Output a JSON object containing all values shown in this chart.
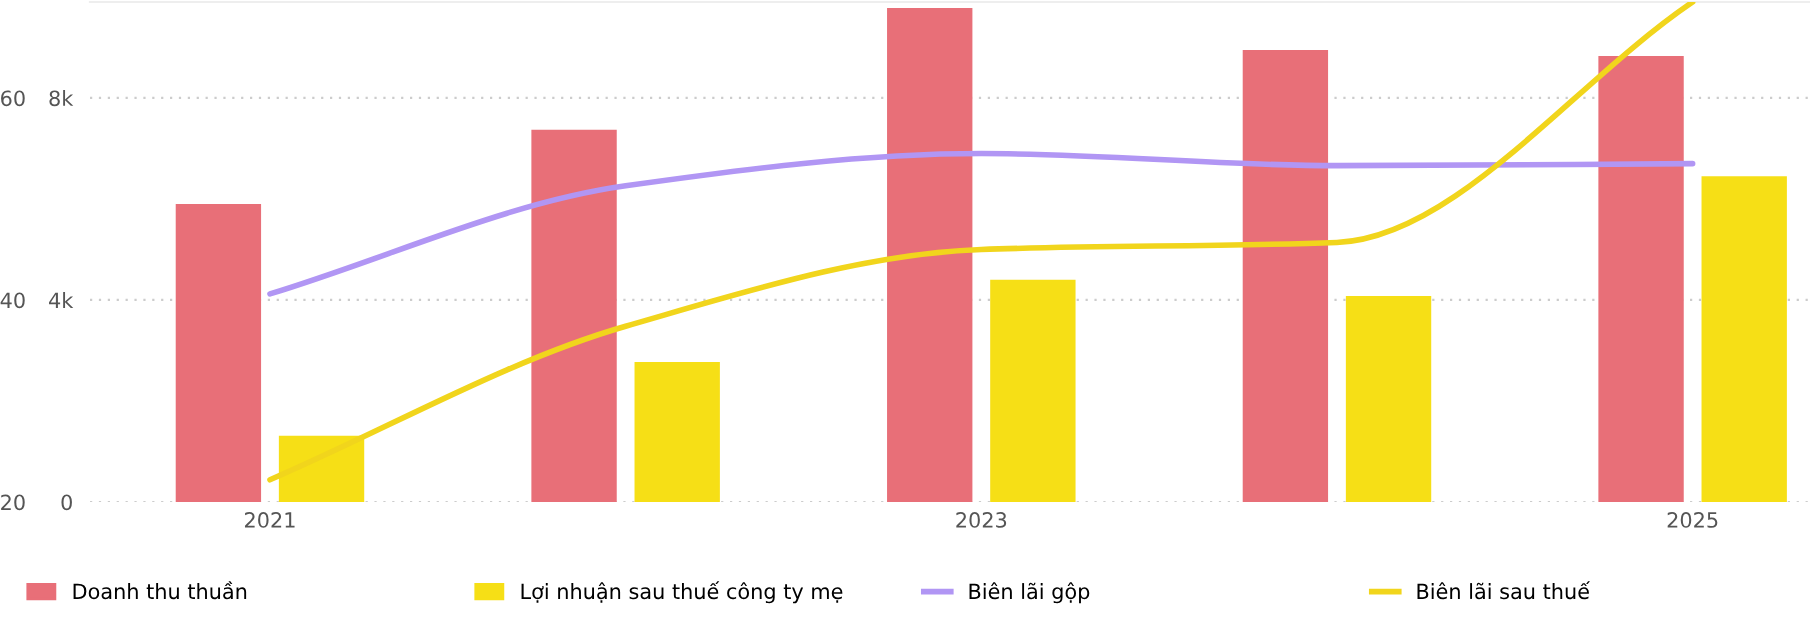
{
  "chart_data": {
    "type": "bar",
    "categories": [
      "2021",
      null,
      "2023",
      null,
      "2025"
    ],
    "series": [
      {
        "name": "Doanh thu thuần",
        "color": "#e86f78",
        "values": [
          5900,
          7370,
          9780,
          8950,
          8830
        ]
      },
      {
        "name": "Lợi nhuận sau thuế công ty mẹ",
        "color": "#f6df16",
        "values": [
          1310,
          2770,
          4400,
          4080,
          6450
        ]
      },
      {
        "name": "Biên lãi gộp",
        "type": "line",
        "axis": "y2",
        "color": "#b196f4",
        "values": [
          40.6,
          51.3,
          54.5,
          53.3,
          53.5
        ]
      },
      {
        "name": "Biên lãi sau thuế",
        "type": "line",
        "axis": "y2",
        "color": "#f1d51c",
        "values": [
          22.2,
          37.4,
          45.0,
          45.7,
          69.5
        ]
      }
    ],
    "ylim": [
      0,
      9900
    ],
    "yticks": [
      {
        "value": 0,
        "label": "0"
      },
      {
        "value": 4000,
        "label": "4k"
      },
      {
        "value": 8000,
        "label": "8k"
      }
    ],
    "y2lim": [
      20,
      69.5
    ],
    "y2ticks": [
      20,
      40,
      60
    ],
    "grid": "y",
    "legend": "bottom",
    "marker": "none"
  }
}
